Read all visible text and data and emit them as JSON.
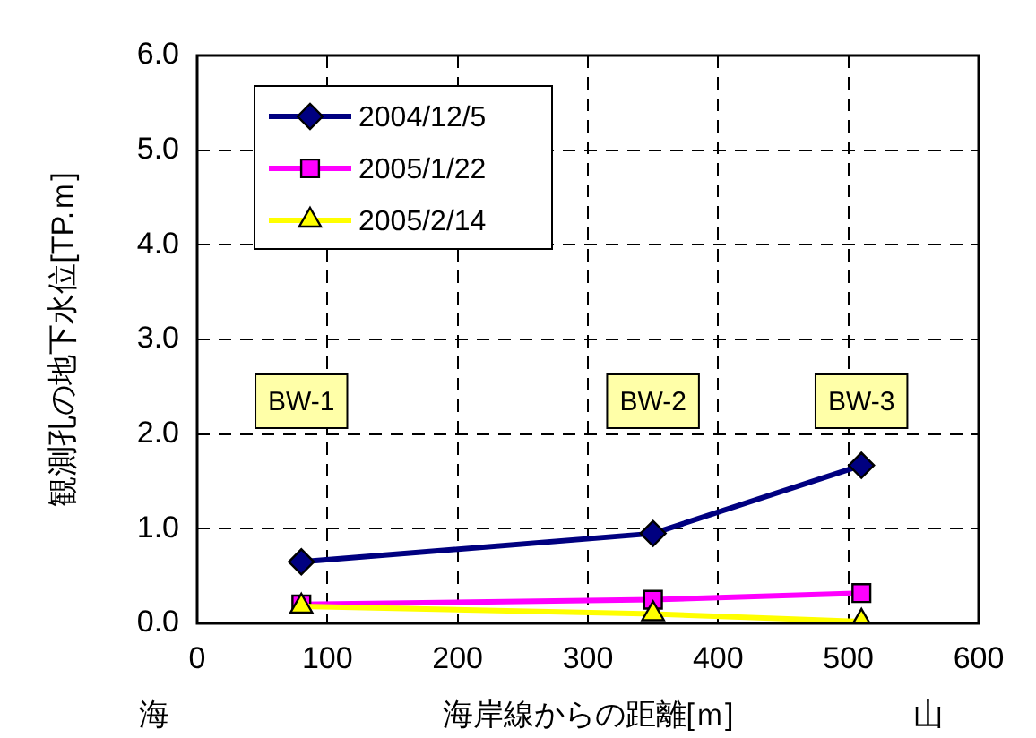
{
  "chart_data": {
    "type": "line",
    "xlabel": "海岸線からの距離[ｍ]",
    "ylabel": "観測孔の地下水位[TP.ｍ]",
    "series": [
      {
        "name": "2004/12/5",
        "color": "#000080",
        "x": [
          80,
          350,
          510
        ],
        "values": [
          0.65,
          0.95,
          1.67
        ],
        "marker": "diamond"
      },
      {
        "name": "2005/1/22",
        "color": "#ff00ff",
        "x": [
          80,
          350,
          510
        ],
        "values": [
          0.2,
          0.25,
          0.32
        ],
        "marker": "square"
      },
      {
        "name": "2005/2/14",
        "color": "#ffff00",
        "x": [
          80,
          350,
          510
        ],
        "values": [
          0.18,
          0.1,
          0.02
        ],
        "marker": "triangle"
      }
    ],
    "xlim": [
      0,
      600
    ],
    "xticks": [
      0,
      100,
      200,
      300,
      400,
      500,
      600
    ],
    "ylim": [
      0,
      6
    ],
    "yticks": [
      {
        "value": 0,
        "label": "0.0"
      },
      {
        "value": 1,
        "label": "1.0"
      },
      {
        "value": 2,
        "label": "2.0"
      },
      {
        "value": 3,
        "label": "3.0"
      },
      {
        "value": 4,
        "label": "4.0"
      },
      {
        "value": 5,
        "label": "5.0"
      },
      {
        "value": 6,
        "label": "6.0"
      }
    ],
    "grid": true,
    "legend": "top left",
    "line_style": "solid",
    "annotations": [
      "BW-1",
      "BW-2",
      "BW-3",
      "海",
      "山"
    ]
  }
}
